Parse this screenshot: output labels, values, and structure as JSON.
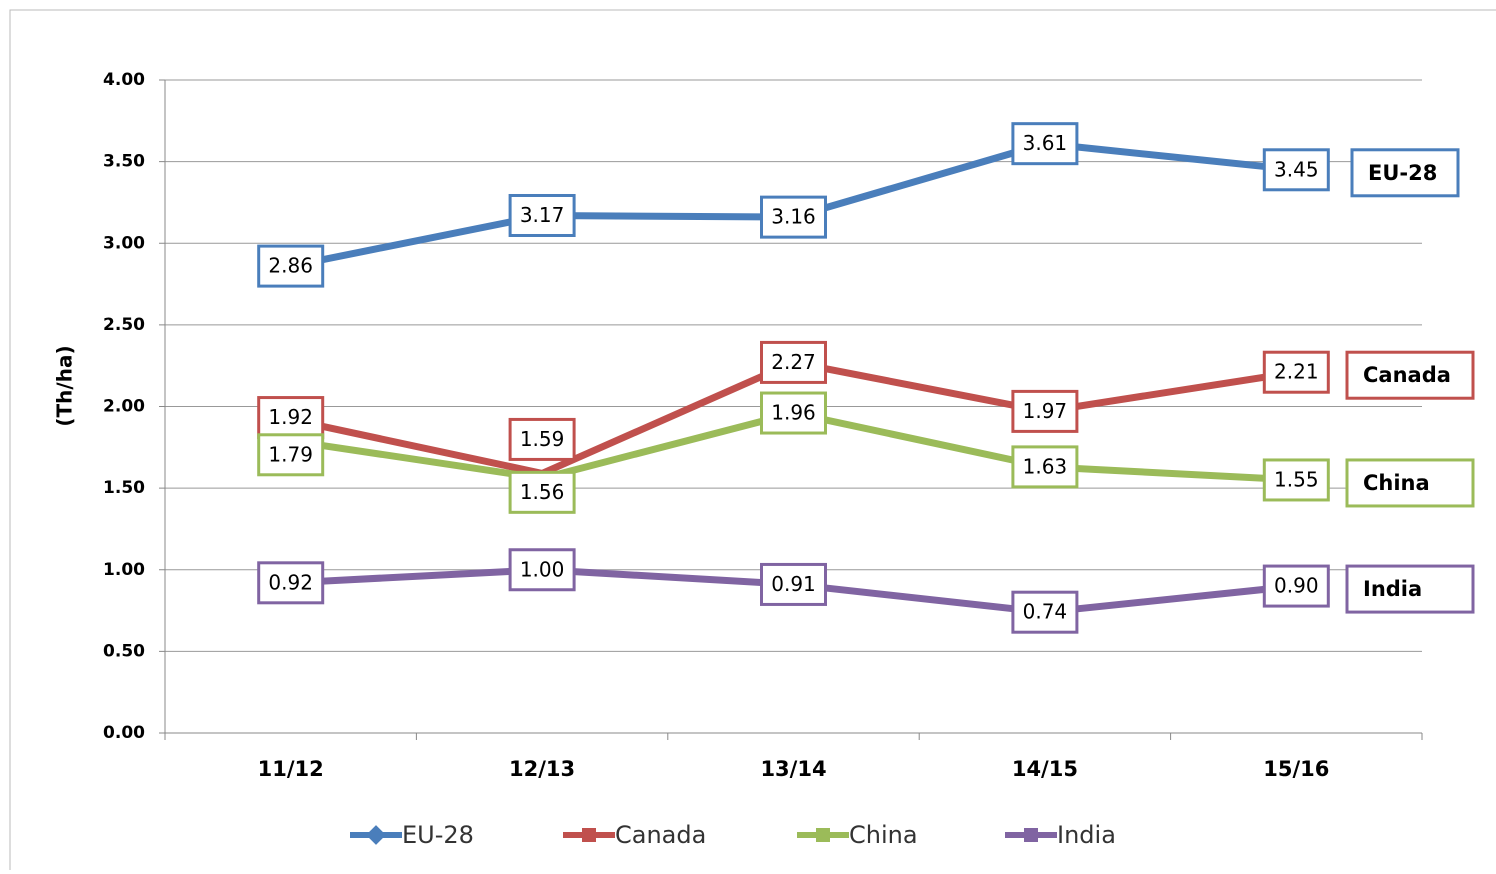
{
  "chart_data": {
    "type": "line",
    "y_label": "(Th/ha)",
    "categories": [
      "11/12",
      "12/13",
      "13/14",
      "14/15",
      "15/16"
    ],
    "ylim": [
      0,
      4
    ],
    "yticks": [
      {
        "value": 0,
        "label": "0.00"
      },
      {
        "value": 0.5,
        "label": "0.50"
      },
      {
        "value": 1,
        "label": "1.00"
      },
      {
        "value": 1.5,
        "label": "1.50"
      },
      {
        "value": 2,
        "label": "2.00"
      },
      {
        "value": 2.5,
        "label": "2.50"
      },
      {
        "value": 3,
        "label": "3.00"
      },
      {
        "value": 3.5,
        "label": "3.50"
      },
      {
        "value": 4,
        "label": "4.00"
      }
    ],
    "grid": true,
    "legend": "bottom",
    "series": [
      {
        "name": "EU-28",
        "color": "#4a7ebb",
        "values": [
          2.86,
          3.17,
          3.16,
          3.61,
          3.45
        ],
        "value_labels": [
          "2.86",
          "3.17",
          "3.16",
          "3.61",
          "3.45"
        ]
      },
      {
        "name": "Canada",
        "color": "#c0504d",
        "values": [
          1.92,
          1.59,
          2.27,
          1.97,
          2.21
        ],
        "value_labels": [
          "1.92",
          "1.59",
          "2.27",
          "1.97",
          "2.21"
        ]
      },
      {
        "name": "China",
        "color": "#9bbb59",
        "values": [
          1.79,
          1.56,
          1.96,
          1.63,
          1.55
        ],
        "value_labels": [
          "1.79",
          "1.56",
          "1.96",
          "1.63",
          "1.55"
        ]
      },
      {
        "name": "India",
        "color": "#8064a2",
        "values": [
          0.92,
          1.0,
          0.91,
          0.74,
          0.9
        ],
        "value_labels": [
          "0.92",
          "1.00",
          "0.91",
          "0.74",
          "0.90"
        ]
      }
    ]
  }
}
